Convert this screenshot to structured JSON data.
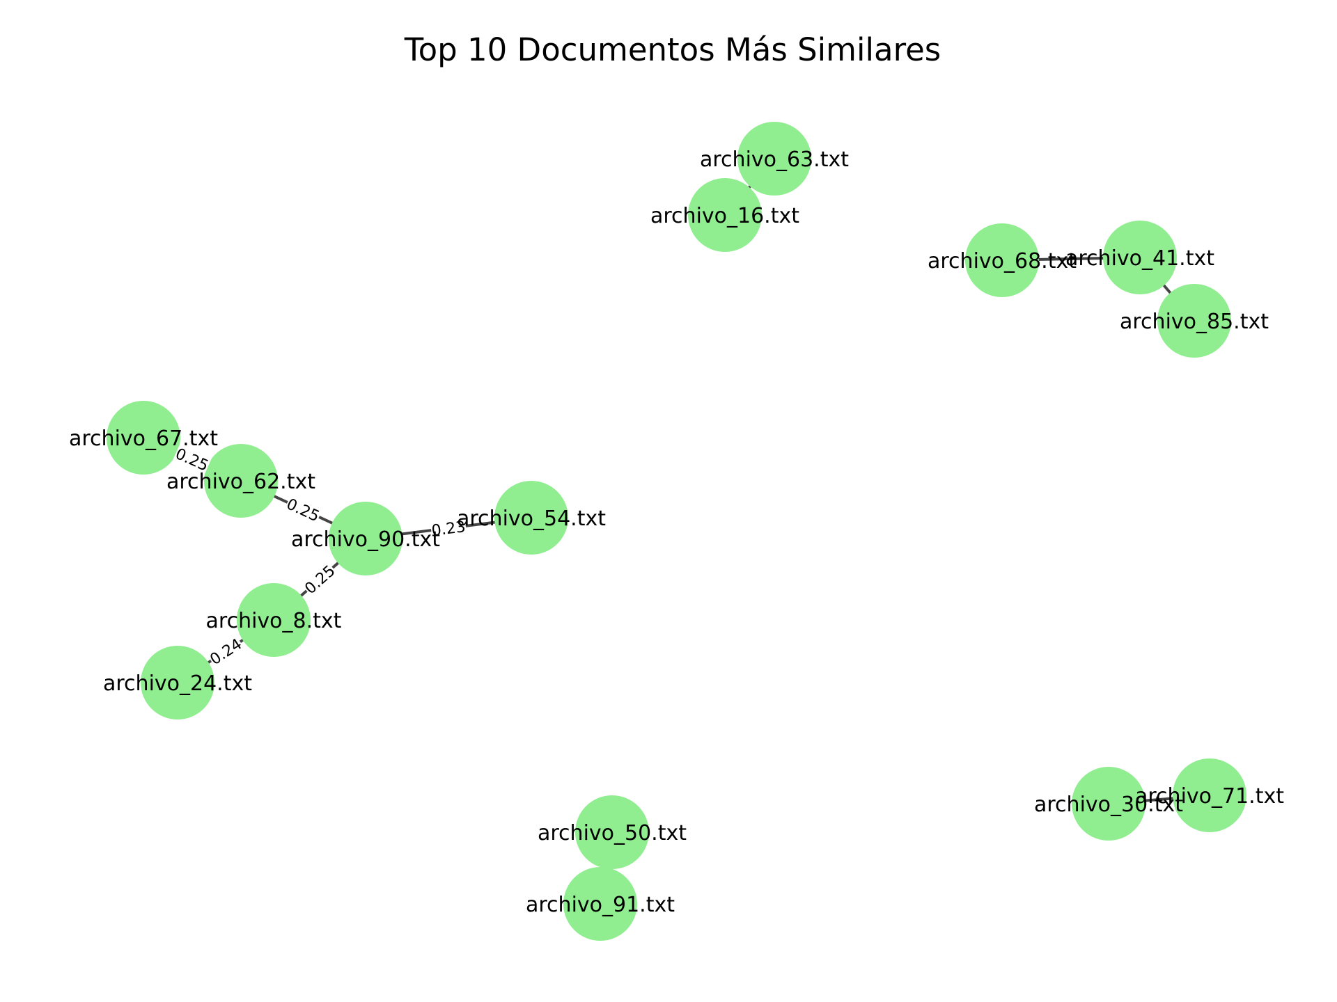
{
  "title": "Top 10 Documentos Más Similares",
  "colors": {
    "node": "#90ee90",
    "edge": "#444444",
    "background": "#ffffff"
  },
  "nodes": [
    {
      "id": "archivo_63.txt",
      "label": "archivo_63.txt"
    },
    {
      "id": "archivo_16.txt",
      "label": "archivo_16.txt"
    },
    {
      "id": "archivo_68.txt",
      "label": "archivo_68.txt"
    },
    {
      "id": "archivo_41.txt",
      "label": "archivo_41.txt"
    },
    {
      "id": "archivo_85.txt",
      "label": "archivo_85.txt"
    },
    {
      "id": "archivo_67.txt",
      "label": "archivo_67.txt"
    },
    {
      "id": "archivo_62.txt",
      "label": "archivo_62.txt"
    },
    {
      "id": "archivo_90.txt",
      "label": "archivo_90.txt"
    },
    {
      "id": "archivo_54.txt",
      "label": "archivo_54.txt"
    },
    {
      "id": "archivo_8.txt",
      "label": "archivo_8.txt"
    },
    {
      "id": "archivo_24.txt",
      "label": "archivo_24.txt"
    },
    {
      "id": "archivo_50.txt",
      "label": "archivo_50.txt"
    },
    {
      "id": "archivo_91.txt",
      "label": "archivo_91.txt"
    },
    {
      "id": "archivo_30.txt",
      "label": "archivo_30.txt"
    },
    {
      "id": "archivo_71.txt",
      "label": "archivo_71.txt"
    }
  ],
  "edges": [
    {
      "source": "archivo_63.txt",
      "target": "archivo_16.txt",
      "label": ""
    },
    {
      "source": "archivo_68.txt",
      "target": "archivo_41.txt",
      "label": ""
    },
    {
      "source": "archivo_41.txt",
      "target": "archivo_85.txt",
      "label": ""
    },
    {
      "source": "archivo_67.txt",
      "target": "archivo_62.txt",
      "label": "0.25"
    },
    {
      "source": "archivo_62.txt",
      "target": "archivo_90.txt",
      "label": "0.25"
    },
    {
      "source": "archivo_90.txt",
      "target": "archivo_54.txt",
      "label": "0.23"
    },
    {
      "source": "archivo_90.txt",
      "target": "archivo_8.txt",
      "label": "0.25"
    },
    {
      "source": "archivo_8.txt",
      "target": "archivo_24.txt",
      "label": "0.24"
    },
    {
      "source": "archivo_50.txt",
      "target": "archivo_91.txt",
      "label": ""
    },
    {
      "source": "archivo_30.txt",
      "target": "archivo_71.txt",
      "label": ""
    }
  ]
}
